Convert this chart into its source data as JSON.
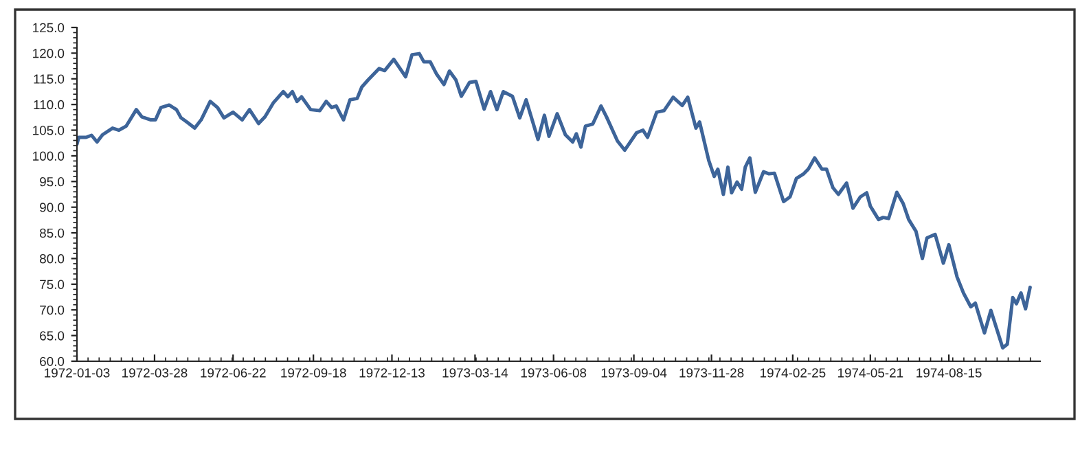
{
  "chart_data": {
    "type": "line",
    "x": [
      "1972-01-03",
      "1972-01-05",
      "1972-01-13",
      "1972-01-19",
      "1972-01-25",
      "1972-01-31",
      "1972-02-11",
      "1972-02-18",
      "1972-02-26",
      "1972-03-08",
      "1972-03-14",
      "1972-03-24",
      "1972-03-29",
      "1972-04-04",
      "1972-04-13",
      "1972-04-21",
      "1972-04-26",
      "1972-05-03",
      "1972-05-11",
      "1972-05-18",
      "1972-05-28",
      "1972-06-05",
      "1972-06-12",
      "1972-06-22",
      "1972-07-02",
      "1972-07-10",
      "1972-07-20",
      "1972-07-27",
      "1972-08-05",
      "1972-08-16",
      "1972-08-21",
      "1972-08-26",
      "1972-08-31",
      "1972-09-05",
      "1972-09-15",
      "1972-09-25",
      "1972-10-02",
      "1972-10-08",
      "1972-10-13",
      "1972-10-21",
      "1972-10-28",
      "1972-11-05",
      "1972-11-10",
      "1972-11-17",
      "1972-11-29",
      "1972-12-05",
      "1972-12-15",
      "1972-12-28",
      "1973-01-04",
      "1973-01-12",
      "1973-01-17",
      "1973-01-24",
      "1973-01-31",
      "1973-02-08",
      "1973-02-14",
      "1973-02-21",
      "1973-02-27",
      "1973-03-08",
      "1973-03-15",
      "1973-03-24",
      "1973-03-31",
      "1973-04-07",
      "1973-04-14",
      "1973-04-24",
      "1973-05-02",
      "1973-05-09",
      "1973-05-22",
      "1973-05-29",
      "1973-06-03",
      "1973-06-12",
      "1973-06-21",
      "1973-06-29",
      "1973-07-03",
      "1973-07-08",
      "1973-07-13",
      "1973-07-21",
      "1973-07-30",
      "1973-08-05",
      "1973-08-17",
      "1973-08-25",
      "1973-09-07",
      "1973-09-14",
      "1973-09-19",
      "1973-09-29",
      "1973-10-07",
      "1973-10-17",
      "1973-10-27",
      "1973-11-02",
      "1973-11-11",
      "1973-11-15",
      "1973-11-25",
      "1973-12-01",
      "1973-12-05",
      "1973-12-11",
      "1973-12-16",
      "1973-12-20",
      "1973-12-26",
      "1973-12-31",
      "1974-01-04",
      "1974-01-09",
      "1974-01-15",
      "1974-01-24",
      "1974-01-30",
      "1974-02-05",
      "1974-02-15",
      "1974-02-22",
      "1974-03-01",
      "1974-03-09",
      "1974-03-14",
      "1974-03-21",
      "1974-03-29",
      "1974-04-03",
      "1974-04-10",
      "1974-04-16",
      "1974-04-25",
      "1974-05-02",
      "1974-05-10",
      "1974-05-17",
      "1974-05-21",
      "1974-05-30",
      "1974-06-04",
      "1974-06-10",
      "1974-06-19",
      "1974-06-26",
      "1974-07-02",
      "1974-07-10",
      "1974-07-17",
      "1974-07-22",
      "1974-07-31",
      "1974-08-09",
      "1974-08-15",
      "1974-08-24",
      "1974-08-31",
      "1974-09-08",
      "1974-09-13",
      "1974-09-23",
      "1974-09-30",
      "1974-10-13",
      "1974-10-18",
      "1974-10-24",
      "1974-10-28",
      "1974-11-02",
      "1974-11-07",
      "1974-11-12"
    ],
    "series": [
      {
        "color": "#3d6499",
        "values": [
          102.3,
          103.6,
          103.6,
          104.0,
          102.7,
          104.1,
          105.4,
          105.0,
          105.8,
          109.0,
          107.6,
          107.0,
          107.0,
          109.4,
          109.9,
          109.0,
          107.4,
          106.5,
          105.4,
          107.0,
          110.6,
          109.4,
          107.4,
          108.5,
          107.0,
          109.0,
          106.3,
          107.6,
          110.3,
          112.5,
          111.5,
          112.5,
          110.6,
          111.5,
          109.0,
          108.8,
          110.6,
          109.4,
          109.7,
          107.0,
          110.9,
          111.2,
          113.4,
          114.8,
          117.0,
          116.6,
          118.8,
          115.4,
          119.7,
          119.9,
          118.3,
          118.3,
          115.9,
          113.9,
          116.5,
          114.8,
          111.6,
          114.3,
          114.5,
          109.1,
          112.5,
          109.0,
          112.5,
          111.6,
          107.4,
          110.9,
          103.2,
          107.9,
          103.8,
          108.2,
          104.1,
          102.7,
          104.3,
          101.7,
          105.8,
          106.2,
          109.7,
          107.6,
          102.9,
          101.1,
          104.5,
          105.0,
          103.6,
          108.5,
          108.8,
          111.4,
          109.8,
          111.4,
          105.4,
          106.6,
          99.1,
          96.0,
          97.4,
          92.5,
          97.8,
          92.8,
          94.9,
          93.5,
          97.8,
          99.6,
          92.9,
          96.9,
          96.5,
          96.6,
          91.1,
          92.0,
          95.6,
          96.5,
          97.4,
          99.6,
          97.4,
          97.4,
          93.8,
          92.5,
          94.7,
          89.8,
          92.0,
          92.8,
          90.2,
          87.6,
          88.0,
          87.8,
          92.9,
          90.7,
          87.6,
          85.3,
          80.0,
          84.0,
          84.7,
          79.1,
          82.7,
          76.4,
          73.3,
          70.6,
          71.3,
          65.5,
          69.9,
          62.6,
          63.3,
          72.4,
          71.2,
          73.3,
          70.2,
          74.4
        ]
      }
    ],
    "xlim": [
      "1972-01-03",
      "1974-11-23"
    ],
    "xticks": [
      "1972-01-03",
      "1972-03-28",
      "1972-06-22",
      "1972-09-18",
      "1972-12-13",
      "1973-03-14",
      "1973-06-08",
      "1973-09-04",
      "1973-11-28",
      "1974-02-25",
      "1974-05-21",
      "1974-08-15"
    ],
    "ylim": [
      60,
      125
    ],
    "yticks": [
      {
        "value": 60,
        "label": "60.0"
      },
      {
        "value": 65,
        "label": "65.0"
      },
      {
        "value": 70,
        "label": "70.0"
      },
      {
        "value": 75,
        "label": "75.0"
      },
      {
        "value": 80,
        "label": "80.0"
      },
      {
        "value": 85,
        "label": "85.0"
      },
      {
        "value": 90,
        "label": "90.0"
      },
      {
        "value": 95,
        "label": "95.0"
      },
      {
        "value": 100,
        "label": "100.0"
      },
      {
        "value": 105,
        "label": "105.0"
      },
      {
        "value": 110,
        "label": "110.0"
      },
      {
        "value": 115,
        "label": "115.0"
      },
      {
        "value": 120,
        "label": "120.0"
      },
      {
        "value": 125,
        "label": "125.0"
      }
    ],
    "grid": false
  }
}
